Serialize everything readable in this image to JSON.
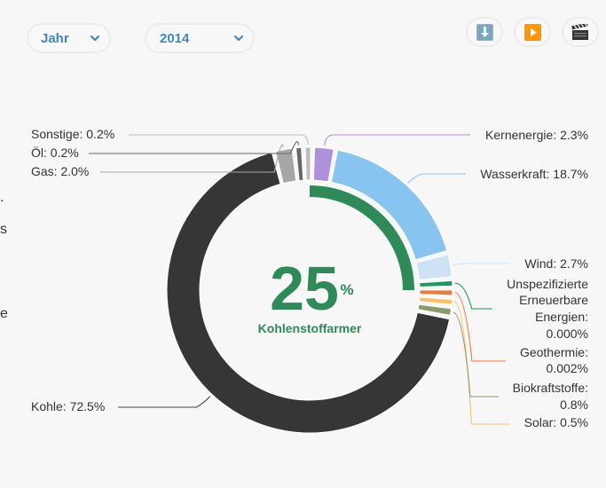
{
  "controls": {
    "period_select": {
      "value": "Jahr"
    },
    "year_select": {
      "value": "2014"
    },
    "buttons": [
      {
        "name": "download",
        "icon": "download-arrow-icon"
      },
      {
        "name": "play",
        "icon": "play-icon"
      },
      {
        "name": "video",
        "icon": "clapperboard-icon"
      }
    ]
  },
  "side_text_fragments": [
    ".",
    "s",
    "e"
  ],
  "center": {
    "value": "25",
    "unit": "%",
    "label": "Kohlenstoffarmer"
  },
  "colors": {
    "accent": "#3d87c7",
    "green": "#2e8b57"
  },
  "chart_data": {
    "type": "pie",
    "title": "",
    "variant": "donut",
    "center_value": 25,
    "center_label": "Kohlenstoffarmer",
    "inner_progress": 0.25,
    "slices": [
      {
        "name": "Kernenergie",
        "label": "Kernenergie: 2.3%",
        "value": 2.3,
        "color": "#b090d8"
      },
      {
        "name": "Wasserkraft",
        "label": "Wasserkraft: 18.7%",
        "value": 18.7,
        "color": "#88c4f0"
      },
      {
        "name": "Wind",
        "label": "Wind: 2.7%",
        "value": 2.7,
        "color": "#cde3f5"
      },
      {
        "name": "Unspezifizierte Erneuerbare Energien",
        "label": "Unspezifizierte Erneuerbare Energien: 0.000%",
        "value": 0.0,
        "color": "#1e9a60"
      },
      {
        "name": "Geothermie",
        "label": "Geothermie: 0.002%",
        "value": 0.002,
        "color": "#f07a3a"
      },
      {
        "name": "Solar",
        "label": "Solar: 0.5%",
        "value": 0.5,
        "color": "#fbc16a"
      },
      {
        "name": "Biokraftstoffe",
        "label": "Biokraftstoffe: 0.8%",
        "value": 0.8,
        "color": "#8a9a6a"
      },
      {
        "name": "Kohle",
        "label": "Kohle: 72.5%",
        "value": 72.5,
        "color": "#363636"
      },
      {
        "name": "Gas",
        "label": "Gas: 2.0%",
        "value": 2.0,
        "color": "#a6a6a6"
      },
      {
        "name": "Öl",
        "label": "Öl: 0.2%",
        "value": 0.2,
        "color": "#666666"
      },
      {
        "name": "Sonstige",
        "label": "Sonstige: 0.2%",
        "value": 0.2,
        "color": "#bdbdbd"
      }
    ],
    "legend_labels": {
      "left": [
        "Sonstige: 0.2%",
        "Öl: 0.2%",
        "Gas: 2.0%",
        "Kohle: 72.5%"
      ],
      "right": [
        "Kernenergie: 2.3%",
        "Wasserkraft: 18.7%",
        "Wind: 2.7%",
        "Unspezifizierte Erneuerbare Energien: 0.000%",
        "Geothermie: 0.002%",
        "Biokraftstoffe: 0.8%",
        "Solar: 0.5%"
      ]
    }
  }
}
